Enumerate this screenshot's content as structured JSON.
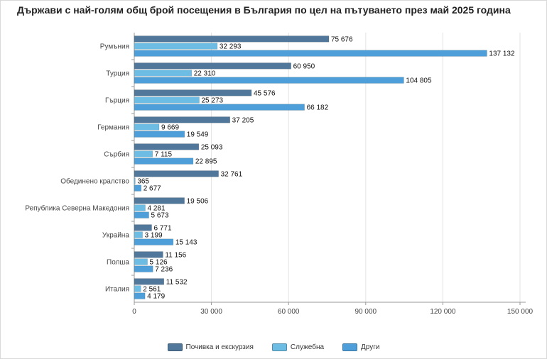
{
  "title": "Държави с най-голям общ брой посещения в България по цел на пътуването през май 2025 година",
  "chart_data": {
    "type": "bar",
    "orientation": "horizontal",
    "categories": [
      "Румъния",
      "Турция",
      "Гърция",
      "Германия",
      "Сърбия",
      "Обединено кралство",
      "Република Северна Македония",
      "Украйна",
      "Полша",
      "Италия"
    ],
    "series": [
      {
        "name": "Почивка и екскурзия",
        "color": "#51789b",
        "values": [
          75676,
          60950,
          45576,
          37205,
          25093,
          32761,
          19506,
          6771,
          11156,
          11532
        ]
      },
      {
        "name": "Служебна",
        "color": "#6cbce4",
        "values": [
          32293,
          22310,
          25273,
          9669,
          7115,
          365,
          4281,
          3199,
          5126,
          2561
        ]
      },
      {
        "name": "Други",
        "color": "#4e9fd9",
        "values": [
          137132,
          104805,
          66182,
          19549,
          22895,
          2677,
          5673,
          15143,
          7236,
          4179
        ]
      }
    ],
    "value_labels": [
      [
        "75 676",
        "32 293",
        "137 132"
      ],
      [
        "60 950",
        "22 310",
        "104 805"
      ],
      [
        "45 576",
        "25 273",
        "66 182"
      ],
      [
        "37 205",
        "9 669",
        "19 549"
      ],
      [
        "25 093",
        "7 115",
        "22 895"
      ],
      [
        "32 761",
        "365",
        "2 677"
      ],
      [
        "19 506",
        "4 281",
        "5 673"
      ],
      [
        "6 771",
        "3 199",
        "15 143"
      ],
      [
        "11 156",
        "5 126",
        "7 236"
      ],
      [
        "11 532",
        "2 561",
        "4 179"
      ]
    ],
    "xlim": [
      0,
      150000
    ],
    "xticks": [
      0,
      30000,
      60000,
      90000,
      120000,
      150000
    ],
    "xtick_labels": [
      "0",
      "30 000",
      "60 000",
      "90 000",
      "120 000",
      "150 000"
    ],
    "grid": true,
    "legend_position": "bottom"
  }
}
